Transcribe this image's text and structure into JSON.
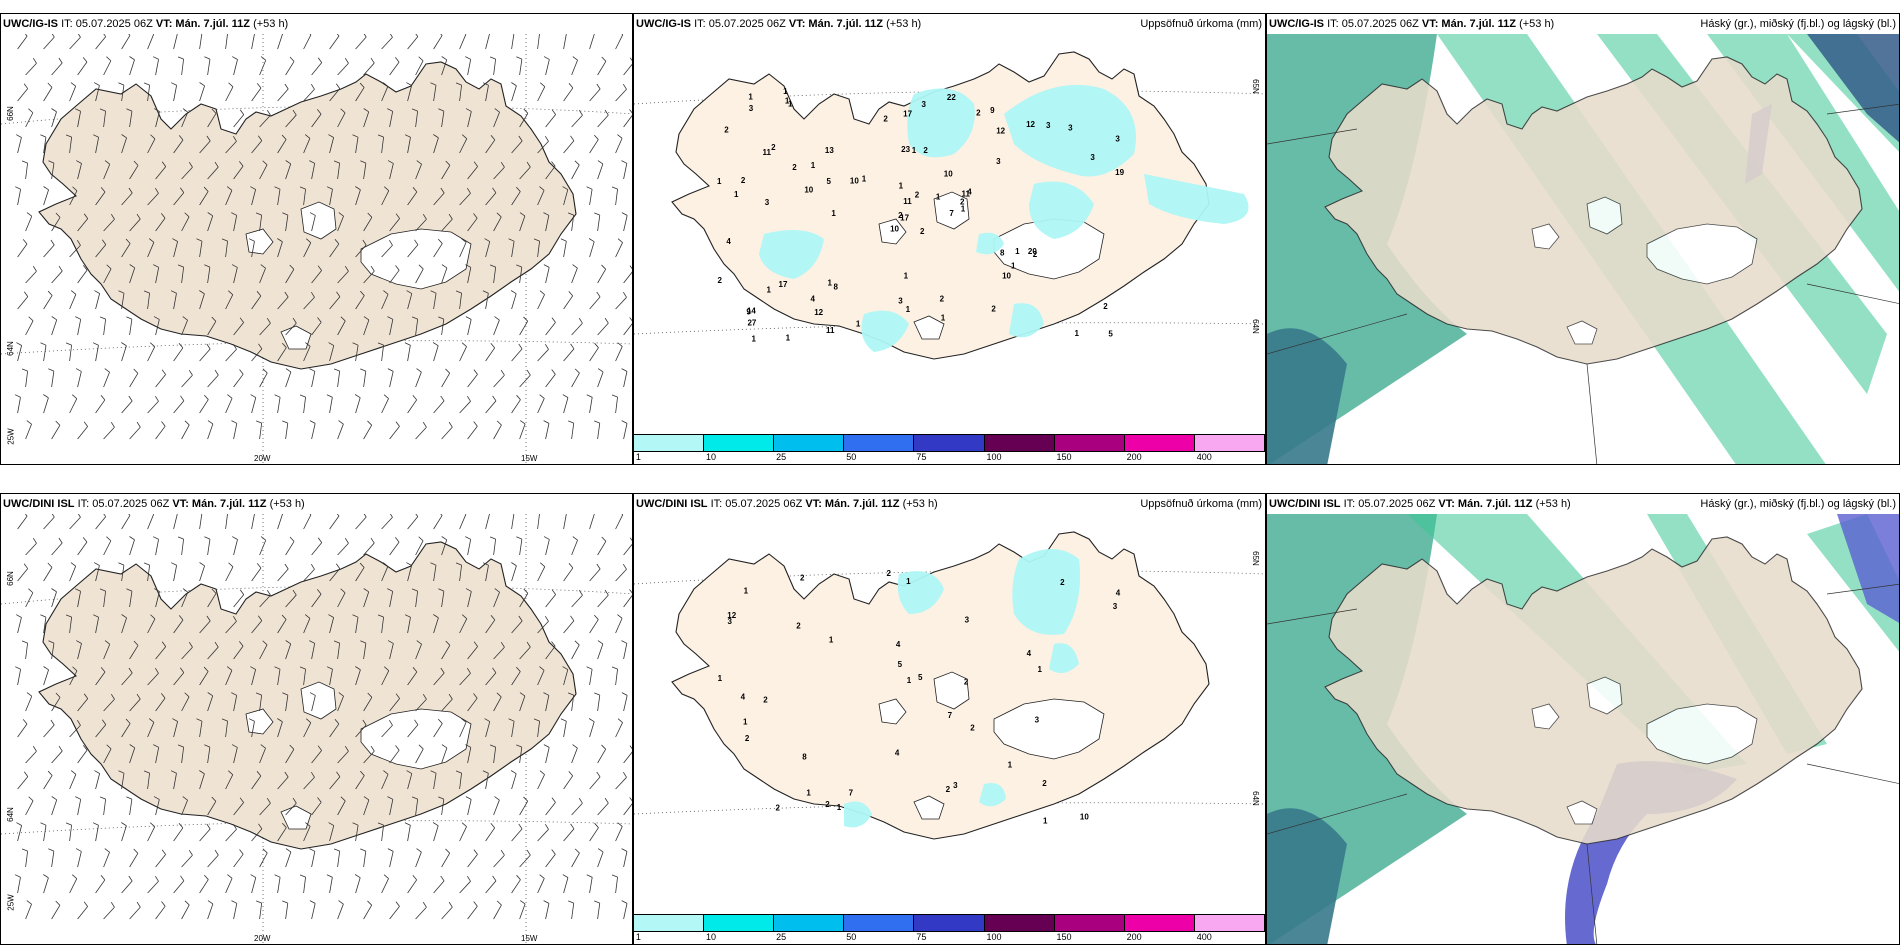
{
  "rows": [
    {
      "model": "UWC/IG-IS",
      "it_label": "IT: 05.07.2025 06Z",
      "vt_prefix": "VT:",
      "vt_value": "Mán. 7.júl. 11Z",
      "lead": "(+53 h)",
      "precip_title": "Uppsöfnuð úrkoma (mm)",
      "cloud_title": "Háský (gr.), miðský (fj.bl.) og lágský (bl.)",
      "precip_values": [
        "2",
        "11",
        "17",
        "14",
        "11",
        "8",
        "9",
        "2",
        "12",
        "7",
        "1",
        "5",
        "3",
        "3",
        "10",
        "3",
        "1",
        "23",
        "10",
        "17",
        "1",
        "27",
        "12",
        "1",
        "4",
        "2",
        "2",
        "17",
        "1",
        "8",
        "19",
        "2",
        "3",
        "11",
        "13",
        "12",
        "1",
        "1",
        "2",
        "20",
        "22",
        "10",
        "10",
        "10",
        "11",
        "1",
        "2",
        "1",
        "1",
        "1",
        "1",
        "3",
        "2",
        "1",
        "2",
        "4",
        "1",
        "1",
        "2",
        "3",
        "3",
        "1",
        "2",
        "1",
        "3",
        "1",
        "2",
        "2",
        "2",
        "2",
        "1",
        "1",
        "1",
        "5",
        "9",
        "3",
        "2",
        "4",
        "1",
        "1",
        "1"
      ]
    },
    {
      "model": "UWC/DINI ISL",
      "it_label": "IT: 05.07.2025 06Z",
      "vt_prefix": "VT:",
      "vt_value": "Mán. 7.júl. 11Z",
      "lead": "(+53 h)",
      "precip_title": "Uppsöfnuð úrkoma (mm)",
      "cloud_title": "Háský (gr.), miðský (fj.bl.) og lágský (bl.)",
      "precip_values": [
        "1",
        "1",
        "4",
        "4",
        "12",
        "10",
        "2",
        "3",
        "4",
        "2",
        "5",
        "3",
        "2",
        "3",
        "2",
        "8",
        "3",
        "4",
        "7",
        "4",
        "1",
        "2",
        "3",
        "5",
        "1",
        "1",
        "2",
        "2",
        "1",
        "2",
        "1",
        "1",
        "2",
        "2",
        "2",
        "2",
        "1",
        "1",
        "7",
        "1"
      ]
    }
  ],
  "scale": {
    "colors": [
      "#b3f7f7",
      "#00eaea",
      "#00bfef",
      "#2f6ff0",
      "#3239c4",
      "#660052",
      "#a8007f",
      "#ee00a8",
      "#f7a8f0"
    ],
    "labels": [
      "1",
      "10",
      "25",
      "50",
      "75",
      "100",
      "150",
      "200",
      "400"
    ]
  },
  "coords": {
    "lat66": "66N",
    "lat64": "64N",
    "lat65": "65N",
    "lon25": "25W",
    "lon20": "20W",
    "lon15": "15W"
  }
}
